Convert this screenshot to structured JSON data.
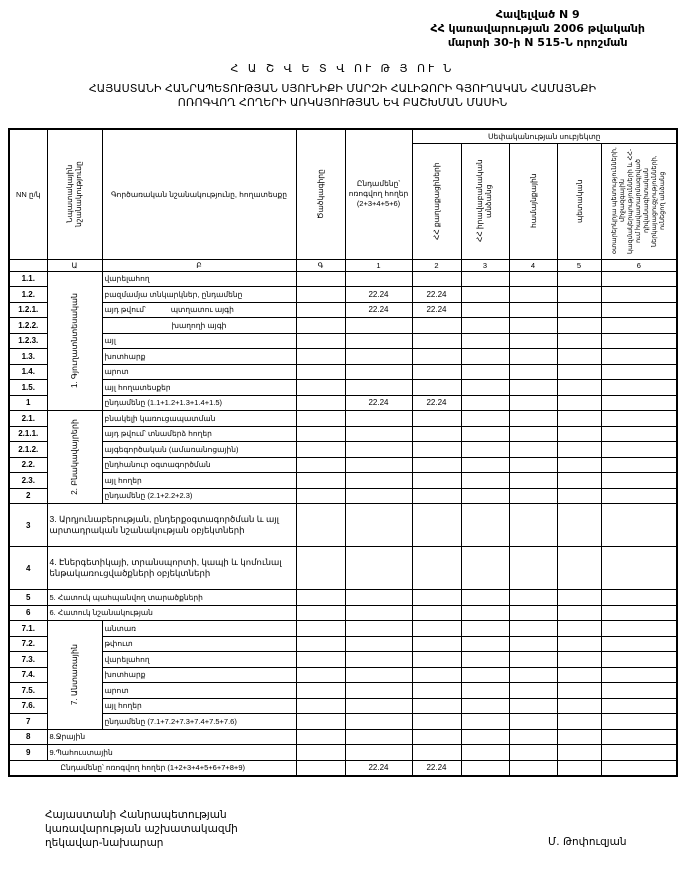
{
  "annex": {
    "line1": "Հավելված N 9",
    "line2": "ՀՀ կառավարության 2006 թվականի",
    "line3": "մարտի 30-ի N 515-Ն որոշման"
  },
  "title": "Հ Ա Շ Վ Ե Տ Վ ՈՒ Թ Յ ՈՒ Ն",
  "subtitle_line1": "ՀԱՅԱՍՏԱՆԻ ՀԱՆՐԱՊԵՏՈՒԹՅԱՆ ՍՅՈՒՆԻՔԻ ՄԱՐԶԻ ՀԱԼԻՁՈՐԻ ԳՅՈՒՂԱԿԱՆ ՀԱՄԱՅՆՔԻ",
  "subtitle_line2": "ՈՌՈԳՎՈՂ ՀՈՂԵՐԻ ԱՌԿԱՅՈՒԹՅԱՆ ԵՎ ԲԱՇԽՄԱՆ ՄԱՍԻՆ",
  "table": {
    "headers": {
      "nn": "NN ը/կ",
      "purpose": "Նպատակային նշանակությունը",
      "function": "Գործառական նշանակությունը, հողատեսքը",
      "code": "Ծածկագիրը",
      "total": "Ընդամենը՝ ոռոգվող հողեր (2+3+4+5+6)",
      "ownership": "Սեփականության սուբյեկտը",
      "col2": "ՀՀ քաղաքացիների",
      "col3": "ՀՀ իրավաբանական անձանց",
      "col4": "համայնքային",
      "col5": "պետական",
      "col6": "օտարերկրյա պետությունների, միջազգային կազմակերպությունների և ՀՀ-ում հավատարմագրված դիվանագիտական ներկայացուցչությունների, ունեցող անձանց"
    },
    "index_row": [
      "",
      "Ա",
      "Բ",
      "Գ",
      "1",
      "2",
      "3",
      "4",
      "5",
      "6"
    ],
    "sections": [
      {
        "group": "1. Գյուղատնտեսական",
        "rows": [
          {
            "num": "1.1.",
            "label": "վարելահող",
            "values": [
              "",
              "",
              "",
              "",
              "",
              ""
            ]
          },
          {
            "num": "1.2.",
            "label": "բազմամյա տնկարկներ, ընդամենը",
            "values": [
              "22.24",
              "22.24",
              "",
              "",
              "",
              ""
            ]
          },
          {
            "num": "1.2.1.",
            "label": "այդ թվում՝            պտղատու այգի",
            "values": [
              "22.24",
              "22.24",
              "",
              "",
              "",
              ""
            ]
          },
          {
            "num": "1.2.2.",
            "label": "խաղողի այգի",
            "center": true,
            "values": [
              "",
              "",
              "",
              "",
              "",
              ""
            ]
          },
          {
            "num": "1.2.3.",
            "label": "այլ",
            "values": [
              "",
              "",
              "",
              "",
              "",
              ""
            ]
          },
          {
            "num": "1.3.",
            "label": "խոտհարք",
            "values": [
              "",
              "",
              "",
              "",
              "",
              ""
            ]
          },
          {
            "num": "1.4.",
            "label": "արոտ",
            "values": [
              "",
              "",
              "",
              "",
              "",
              ""
            ]
          },
          {
            "num": "1.5.",
            "label": "այլ հողատեսքեր",
            "values": [
              "",
              "",
              "",
              "",
              "",
              ""
            ]
          },
          {
            "num": "1",
            "label": "ընդամենը (1.1+1.2+1.3+1.4+1.5)",
            "values": [
              "22.24",
              "22.24",
              "",
              "",
              "",
              ""
            ]
          }
        ]
      },
      {
        "group": "2. Բնակավայրերի",
        "rows": [
          {
            "num": "2.1.",
            "label": "բնակելի կառուցապատման",
            "values": [
              "",
              "",
              "",
              "",
              "",
              ""
            ]
          },
          {
            "num": "2.1.1.",
            "label": "այդ թվում՝ տնամերձ հողեր",
            "values": [
              "",
              "",
              "",
              "",
              "",
              ""
            ]
          },
          {
            "num": "2.1.2.",
            "label": "այգեգործական (ամառանոցային)",
            "values": [
              "",
              "",
              "",
              "",
              "",
              ""
            ]
          },
          {
            "num": "2.2.",
            "label": "ընդհանուր օգտագործման",
            "values": [
              "",
              "",
              "",
              "",
              "",
              ""
            ]
          },
          {
            "num": "2.3.",
            "label": "այլ հողեր",
            "values": [
              "",
              "",
              "",
              "",
              "",
              ""
            ]
          },
          {
            "num": "2",
            "label": "ընդամենը (2.1+2.2+2.3)",
            "values": [
              "",
              "",
              "",
              "",
              "",
              ""
            ]
          }
        ]
      },
      {
        "num": "3",
        "label": "3. Արդյունաբերության, ընդերքօգտագործման և այլ արտադրական նշանակության օբյեկտների",
        "values": [
          "",
          "",
          "",
          "",
          "",
          ""
        ]
      },
      {
        "num": "4",
        "label": "4. Էներգետիկայի, տրանսպորտի, կապի և կոմունալ ենթակառուցվածքների օբյեկտների",
        "values": [
          "",
          "",
          "",
          "",
          "",
          ""
        ]
      },
      {
        "num": "5",
        "label": "5. Հատուկ պահպանվող տարածքների",
        "values": [
          "",
          "",
          "",
          "",
          "",
          ""
        ]
      },
      {
        "num": "6",
        "label": "6. Հատուկ նշանակության",
        "values": [
          "",
          "",
          "",
          "",
          "",
          ""
        ]
      },
      {
        "group": "7. Անտառային",
        "rows": [
          {
            "num": "7.1.",
            "label": "անտառ",
            "values": [
              "",
              "",
              "",
              "",
              "",
              ""
            ]
          },
          {
            "num": "7.2.",
            "label": "թփուտ",
            "values": [
              "",
              "",
              "",
              "",
              "",
              ""
            ]
          },
          {
            "num": "7.3.",
            "label": "վարելահող",
            "values": [
              "",
              "",
              "",
              "",
              "",
              ""
            ]
          },
          {
            "num": "7.4.",
            "label": "խոտհարք",
            "values": [
              "",
              "",
              "",
              "",
              "",
              ""
            ]
          },
          {
            "num": "7.5.",
            "label": "արոտ",
            "values": [
              "",
              "",
              "",
              "",
              "",
              ""
            ]
          },
          {
            "num": "7.6.",
            "label": "այլ հողեր",
            "values": [
              "",
              "",
              "",
              "",
              "",
              ""
            ]
          },
          {
            "num": "7",
            "label": "ընդամենը (7.1+7.2+7.3+7.4+7.5+7.6)",
            "values": [
              "",
              "",
              "",
              "",
              "",
              ""
            ]
          }
        ]
      },
      {
        "num": "8",
        "label": "8.Ջրային",
        "values": [
          "",
          "",
          "",
          "",
          "",
          ""
        ]
      },
      {
        "num": "9",
        "label": "9.Պահուստային",
        "values": [
          "",
          "",
          "",
          "",
          "",
          ""
        ]
      }
    ],
    "grand_total": {
      "label": "Ընդամենը՝ ոռոգվող հողեր (1+2+3+4+5+6+7+8+9)",
      "values": [
        "22.24",
        "22.24",
        "",
        "",
        "",
        ""
      ]
    }
  },
  "signature": {
    "line1": "Հայաստանի Հանրապետության",
    "line2": "կառավարության աշխատակազմի",
    "line3": "ղեկավար-նախարար",
    "name": "Մ. Թոփուզյան"
  }
}
